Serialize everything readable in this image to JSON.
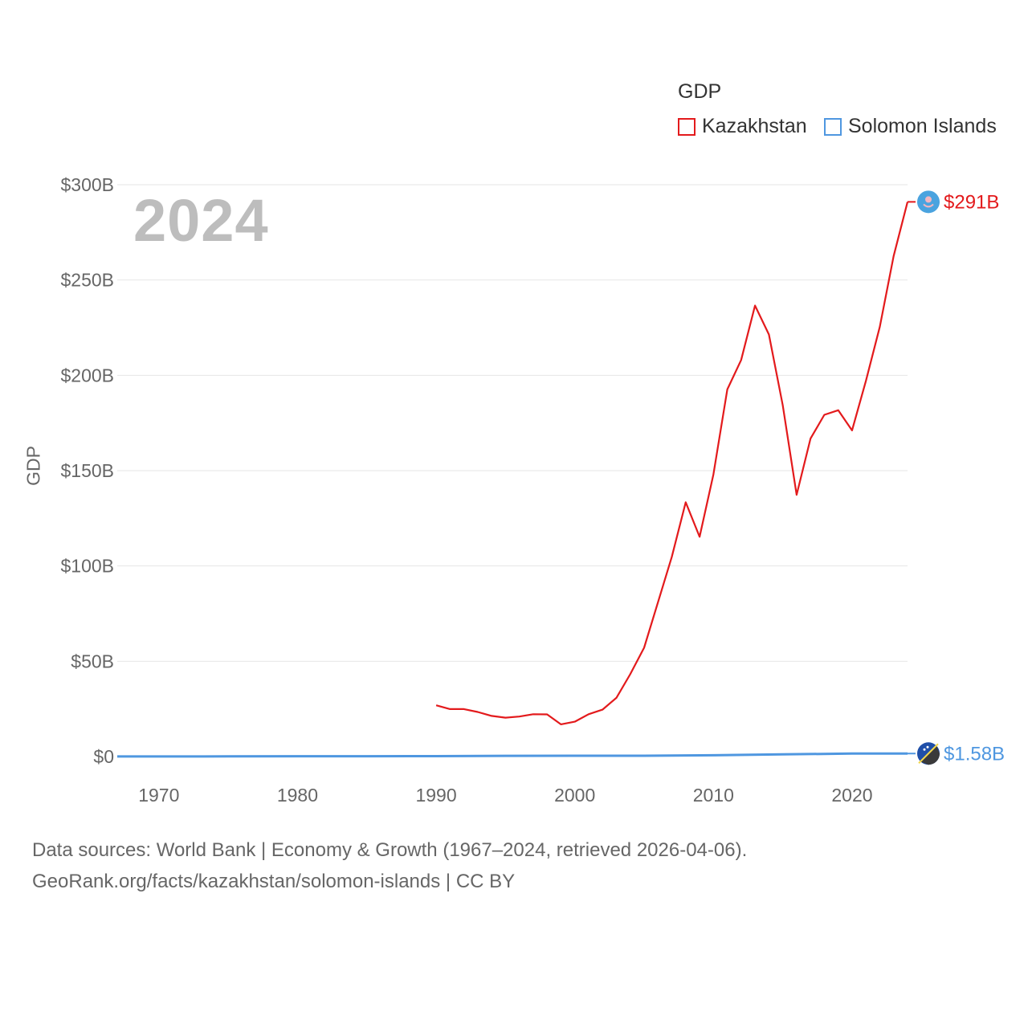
{
  "year_label": "2024",
  "legend": {
    "title": "GDP",
    "items": [
      {
        "name": "Kazakhstan",
        "color": "#e31a1c"
      },
      {
        "name": "Solomon Islands",
        "color": "#4f97e0"
      }
    ]
  },
  "source": {
    "line1": "Data sources: World Bank | Economy & Growth (1967–2024, retrieved 2026-04-06).",
    "line2": "GeoRank.org/facts/kazakhstan/solomon-islands | CC BY"
  },
  "chart_data": {
    "type": "line",
    "title": "GDP",
    "xlabel": "",
    "ylabel": "GDP",
    "xlim": [
      1967,
      2024
    ],
    "ylim": [
      0,
      300
    ],
    "unit": "billion USD",
    "x_ticks": [
      1970,
      1980,
      1990,
      2000,
      2010,
      2020
    ],
    "y_ticks": [
      0,
      50,
      100,
      150,
      200,
      250,
      300
    ],
    "y_tick_labels": [
      "$0",
      "$50B",
      "$100B",
      "$150B",
      "$200B",
      "$250B",
      "$300B"
    ],
    "grid": true,
    "series": [
      {
        "name": "Kazakhstan",
        "color": "#e31a1c",
        "end_label": "$291B",
        "x": [
          1990,
          1991,
          1992,
          1993,
          1994,
          1995,
          1996,
          1997,
          1998,
          1999,
          2000,
          2001,
          2002,
          2003,
          2004,
          2005,
          2006,
          2007,
          2008,
          2009,
          2010,
          2011,
          2012,
          2013,
          2014,
          2015,
          2016,
          2017,
          2018,
          2019,
          2020,
          2021,
          2022,
          2023,
          2024
        ],
        "values": [
          26.9,
          24.9,
          24.9,
          23.4,
          21.3,
          20.4,
          21.0,
          22.2,
          22.1,
          16.9,
          18.3,
          22.2,
          24.6,
          30.8,
          43.2,
          57.1,
          81.0,
          104.8,
          133.4,
          115.3,
          148.0,
          192.6,
          208.0,
          236.6,
          221.4,
          184.4,
          137.3,
          166.8,
          179.3,
          181.7,
          171.1,
          197.1,
          225.5,
          262.6,
          291.0
        ]
      },
      {
        "name": "Solomon Islands",
        "color": "#4f97e0",
        "end_label": "$1.58B",
        "x": [
          1967,
          1970,
          1975,
          1980,
          1985,
          1990,
          1995,
          2000,
          2005,
          2010,
          2015,
          2020,
          2024
        ],
        "values": [
          0.03,
          0.04,
          0.08,
          0.17,
          0.16,
          0.21,
          0.39,
          0.43,
          0.41,
          0.68,
          1.13,
          1.55,
          1.58
        ]
      }
    ]
  }
}
